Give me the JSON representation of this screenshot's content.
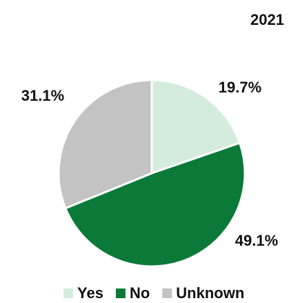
{
  "chart_data": {
    "type": "pie",
    "title": "2021",
    "categories": [
      "Yes",
      "No",
      "Unknown"
    ],
    "values": [
      19.7,
      49.1,
      31.1
    ],
    "value_labels": [
      "19.7%",
      "49.1%",
      "31.1%"
    ],
    "colors": [
      "#d3ecdb",
      "#0b7a39",
      "#c3c3c3"
    ]
  }
}
